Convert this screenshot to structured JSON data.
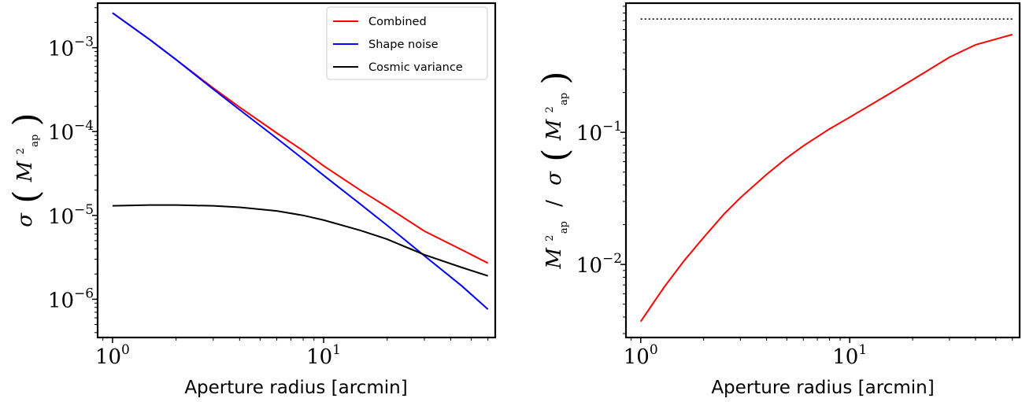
{
  "chart_data": [
    {
      "type": "line",
      "title": "",
      "xlabel": "Aperture radius [arcmin]",
      "ylabel_symbol": "σ",
      "ylabel_quantity": "M",
      "ylabel_superscript": "2",
      "ylabel_subscript": "ap",
      "xscale": "log",
      "yscale": "log",
      "xlim": [
        0.85,
        65
      ],
      "ylim": [
        3.5e-07,
        0.0034
      ],
      "xticks": [
        {
          "value": 1,
          "base": "10",
          "exp": "0"
        },
        {
          "value": 10,
          "base": "10",
          "exp": "1"
        }
      ],
      "yticks": [
        {
          "value": 1e-06,
          "base": "10",
          "exp": "−6"
        },
        {
          "value": 1e-05,
          "base": "10",
          "exp": "−5"
        },
        {
          "value": 0.0001,
          "base": "10",
          "exp": "−4"
        },
        {
          "value": 0.001,
          "base": "10",
          "exp": "−3"
        }
      ],
      "legend_position": "top-right",
      "series": [
        {
          "name": "Combined",
          "color": "#ff0000",
          "x": [
            1,
            1.5,
            2,
            3,
            4,
            6,
            8,
            10,
            15,
            20,
            30,
            45,
            60
          ],
          "y": [
            0.0026,
            0.00125,
            0.00072,
            0.00033,
            0.000195,
            9.6e-05,
            5.9e-05,
            3.9e-05,
            1.98e-05,
            1.26e-05,
            6.5e-06,
            3.9e-06,
            2.7e-06
          ]
        },
        {
          "name": "Shape noise",
          "color": "#0000ff",
          "x": [
            1,
            1.5,
            2,
            3,
            4,
            6,
            8,
            10,
            15,
            20,
            30,
            45,
            60
          ],
          "y": [
            0.0026,
            0.00125,
            0.00072,
            0.00032,
            0.000182,
            8.3e-05,
            4.7e-05,
            3e-05,
            1.35e-05,
            7.6e-06,
            3.3e-06,
            1.45e-06,
            7.6e-07
          ]
        },
        {
          "name": "Cosmic variance",
          "color": "#000000",
          "x": [
            1,
            1.5,
            2,
            3,
            4,
            6,
            8,
            10,
            15,
            20,
            30,
            45,
            60
          ],
          "y": [
            1.3e-05,
            1.33e-05,
            1.33e-05,
            1.3e-05,
            1.25e-05,
            1.13e-05,
            1e-05,
            8.8e-06,
            6.6e-06,
            5.2e-06,
            3.4e-06,
            2.4e-06,
            1.9e-06
          ]
        }
      ]
    },
    {
      "type": "line",
      "title": "",
      "xlabel": "Aperture radius [arcmin]",
      "ylabel_symbol": "σ",
      "ylabel_quantity": "M",
      "ylabel_superscript": "2",
      "ylabel_subscript": "ap",
      "xscale": "log",
      "yscale": "log",
      "xlim": [
        0.85,
        65
      ],
      "ylim": [
        0.0028,
        0.95
      ],
      "xticks": [
        {
          "value": 1,
          "base": "10",
          "exp": "0"
        },
        {
          "value": 10,
          "base": "10",
          "exp": "1"
        }
      ],
      "yticks": [
        {
          "value": 0.01,
          "base": "10",
          "exp": "−2"
        },
        {
          "value": 0.1,
          "base": "10",
          "exp": "−1"
        }
      ],
      "series": [
        {
          "color": "#ff0000",
          "x": [
            1,
            1.3,
            1.6,
            2,
            2.5,
            3,
            4,
            5,
            6,
            8,
            10,
            15,
            20,
            30,
            40,
            60
          ],
          "y": [
            0.0037,
            0.0068,
            0.0105,
            0.016,
            0.024,
            0.032,
            0.048,
            0.064,
            0.079,
            0.106,
            0.13,
            0.19,
            0.25,
            0.37,
            0.46,
            0.55
          ]
        },
        {
          "color": "#000000",
          "style": "dotted",
          "x": [
            1,
            60
          ],
          "y": [
            0.72,
            0.72
          ]
        }
      ]
    }
  ]
}
